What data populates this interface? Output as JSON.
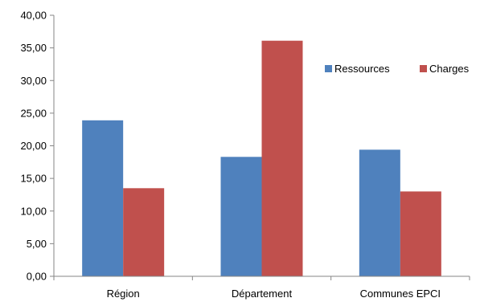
{
  "chart_data": {
    "type": "bar",
    "title": "",
    "xlabel": "",
    "ylabel": "",
    "categories": [
      "Région",
      "Département",
      "Communes EPCI"
    ],
    "series": [
      {
        "name": "Ressources",
        "values": [
          23.9,
          18.3,
          19.4
        ]
      },
      {
        "name": "Charges",
        "values": [
          13.5,
          36.1,
          13.0
        ]
      }
    ],
    "ylim": [
      0,
      40
    ],
    "yticks": [
      0,
      5,
      10,
      15,
      20,
      25,
      30,
      35,
      40
    ],
    "ytick_labels": [
      "0,00",
      "5,00",
      "10,00",
      "15,00",
      "20,00",
      "25,00",
      "30,00",
      "35,00",
      "40,00"
    ],
    "colors": {
      "Ressources": "#4f81bd",
      "Charges": "#c0504d"
    },
    "grid": false,
    "legend_position": "right"
  }
}
